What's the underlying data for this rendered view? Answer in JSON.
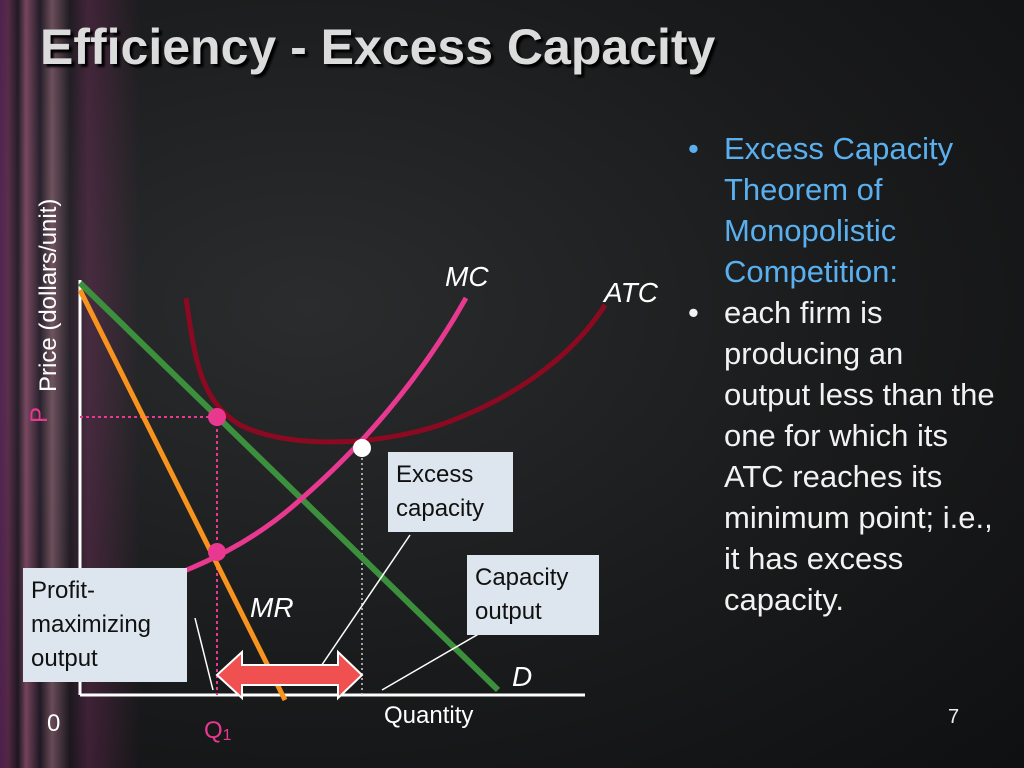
{
  "slide": {
    "title": "Efficiency - Excess Capacity",
    "number": "7"
  },
  "diagram": {
    "y_axis_label": "Price (dollars/unit)",
    "x_axis_label": "Quantity",
    "origin_label": "0",
    "q1_label": "Q",
    "q1_subscript": "1",
    "p_label": "P",
    "curve_labels": {
      "mc": "MC",
      "atc": "ATC",
      "mr": "MR",
      "demand": "D"
    },
    "colors": {
      "mc": "#e8388f",
      "atc": "#8b0a22",
      "mr": "#f7931e",
      "demand": "#3c8f3c",
      "arrow": "#f05050",
      "callout_bg": "#dde6ee",
      "bullet_heading": "#5ab0ee"
    }
  },
  "callouts": {
    "excess_capacity": [
      "Excess",
      "capacity"
    ],
    "capacity_output": [
      "Capacity",
      "output"
    ],
    "profit_maximizing": [
      "Profit-",
      "maximizing",
      "output"
    ]
  },
  "bullets": [
    "Excess Capacity Theorem of Monopolistic Competition:",
    "each firm is producing an output less than the one for which its ATC reaches its minimum point; i.e., it has excess capacity."
  ]
}
